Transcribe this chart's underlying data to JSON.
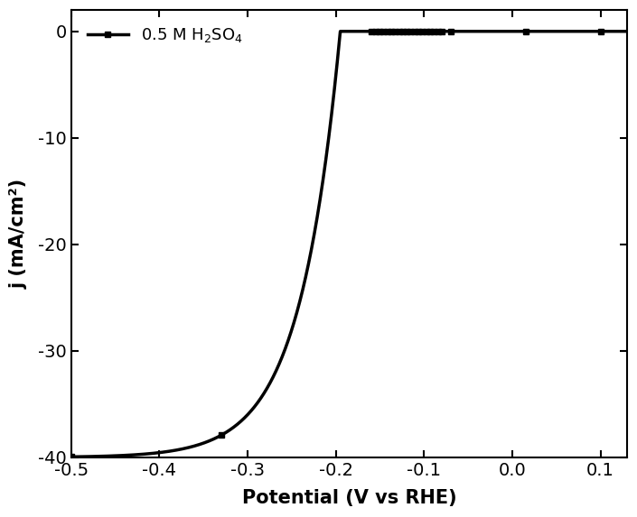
{
  "xlabel": "Potential (V vs RHE)",
  "ylabel": "j (mA/cm²)",
  "legend_label": "0.5 M H$_2$SO$_4$",
  "xlim": [
    -0.5,
    0.13
  ],
  "ylim": [
    -40,
    2
  ],
  "xticks": [
    -0.5,
    -0.4,
    -0.3,
    -0.2,
    -0.1,
    0.0,
    0.1
  ],
  "yticks": [
    0,
    -10,
    -20,
    -30,
    -40
  ],
  "line_color": "#000000",
  "background_color": "#ffffff",
  "line_width": 2.5,
  "marker": "s",
  "marker_size": 5
}
